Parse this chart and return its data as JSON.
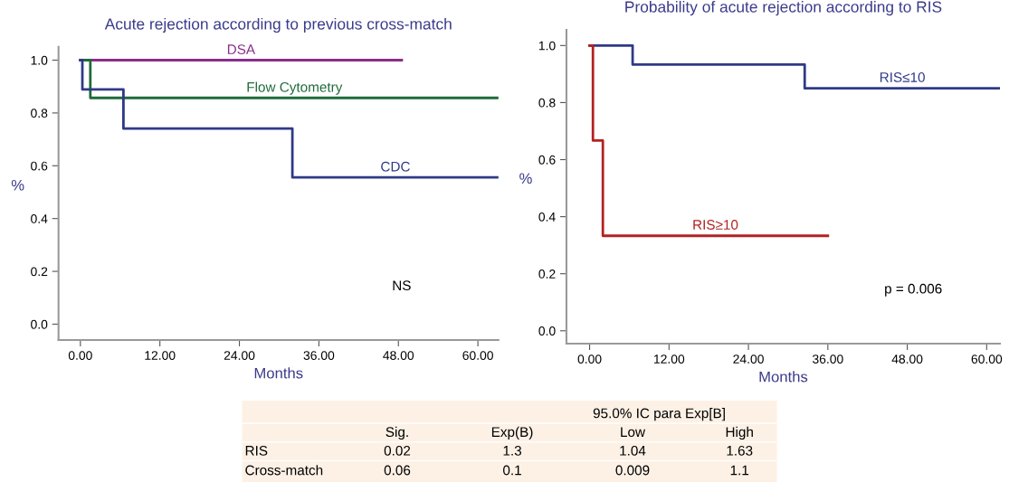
{
  "chart_data": [
    {
      "type": "step",
      "title": "Acute rejection according to previous cross-match",
      "xlabel": "Months",
      "ylabel": "%",
      "xlim": [
        -3.3,
        63.1
      ],
      "ylim": [
        -0.06,
        1.05
      ],
      "xticks": [
        {
          "value": 0,
          "label": "0.00"
        },
        {
          "value": 12,
          "label": "12.00"
        },
        {
          "value": 24,
          "label": "24.00"
        },
        {
          "value": 36,
          "label": "36.00"
        },
        {
          "value": 48,
          "label": "48.00"
        },
        {
          "value": 60,
          "label": "60.00"
        }
      ],
      "yticks": [
        {
          "value": 0,
          "label": "0.0"
        },
        {
          "value": 0.2,
          "label": "0.2"
        },
        {
          "value": 0.4,
          "label": "0.4"
        },
        {
          "value": 0.6,
          "label": "0.6"
        },
        {
          "value": 0.8,
          "label": "0.8"
        },
        {
          "value": 1,
          "label": "1.0"
        }
      ],
      "series": [
        {
          "name": "DSA",
          "color": "#8b2c8b",
          "x": [
            0,
            48.5
          ],
          "values": [
            1,
            1
          ]
        },
        {
          "name": "Flow Cytometry",
          "color": "#1e6b3a",
          "x": [
            0,
            1.5,
            63.1
          ],
          "values": [
            1,
            0.857,
            0.857
          ]
        },
        {
          "name": "CDC",
          "color": "#2e3a87",
          "x": [
            0,
            0.3,
            6.5,
            32,
            63.1
          ],
          "values": [
            1,
            0.889,
            0.741,
            0.556,
            0.556
          ]
        }
      ],
      "annotations": [
        "NS"
      ],
      "grid": false,
      "legend": false
    },
    {
      "type": "step",
      "title": "Probability of acute rejection according to RIS",
      "xlabel": "Months",
      "ylabel": "%",
      "xlim": [
        -3.5,
        62
      ],
      "ylim": [
        -0.045,
        1.055
      ],
      "xticks": [
        {
          "value": 0,
          "label": "0.00"
        },
        {
          "value": 12,
          "label": "12.00"
        },
        {
          "value": 24,
          "label": "24.00"
        },
        {
          "value": 36,
          "label": "36.00"
        },
        {
          "value": 48,
          "label": "48.00"
        },
        {
          "value": 60,
          "label": "60.00"
        }
      ],
      "yticks": [
        {
          "value": 0,
          "label": "0.0"
        },
        {
          "value": 0.2,
          "label": "0.2"
        },
        {
          "value": 0.4,
          "label": "0.4"
        },
        {
          "value": 0.6,
          "label": "0.6"
        },
        {
          "value": 0.8,
          "label": "0.8"
        },
        {
          "value": 1,
          "label": "1.0"
        }
      ],
      "series": [
        {
          "name": "RIS≤10",
          "color": "#2e3a87",
          "x": [
            0,
            6.5,
            32.5,
            62
          ],
          "values": [
            1,
            0.933,
            0.85,
            0.85
          ]
        },
        {
          "name": "RIS≥10",
          "color": "#b22222",
          "x": [
            0,
            0.5,
            2,
            36
          ],
          "values": [
            1,
            0.667,
            0.333,
            0.333
          ]
        }
      ],
      "annotations": [
        "p = 0.006"
      ],
      "grid": false,
      "legend": false
    },
    {
      "type": "other",
      "title": "95.0% IC para Exp[B]",
      "categories": [
        "Sig.",
        "Exp(B)",
        "Low",
        "High"
      ],
      "y_categories": [
        "RIS",
        "Cross-match"
      ],
      "cell_labels": [
        [
          "0.02",
          "1.3",
          "1.04",
          "1.63"
        ],
        [
          "0.06",
          "0.1",
          "0.009",
          "1.1"
        ]
      ]
    }
  ]
}
